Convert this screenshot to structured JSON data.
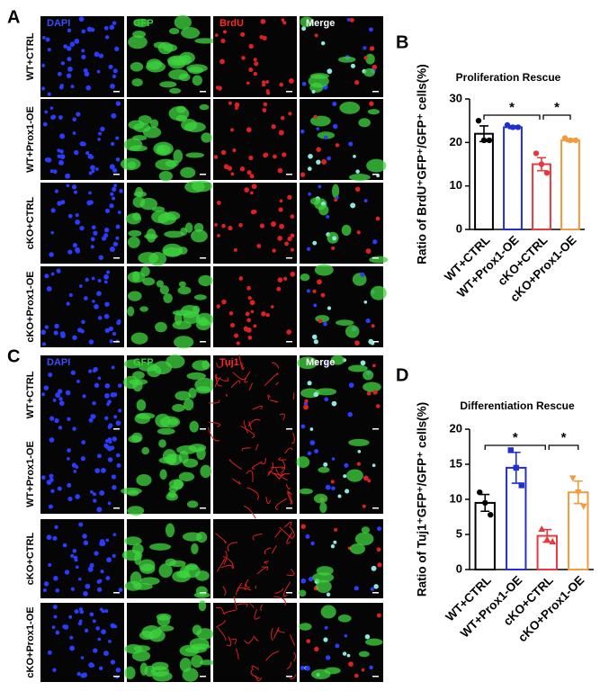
{
  "figure": {
    "panel_A": {
      "label": "A",
      "channels": [
        {
          "name": "DAPI",
          "color": "#3a4cff"
        },
        {
          "name": "GFP",
          "color": "#39d43a"
        },
        {
          "name": "BrdU",
          "color": "#ff2a2a"
        },
        {
          "name": "Merge",
          "color": "#ffffff"
        }
      ],
      "rows": [
        "WT+CTRL",
        "WT+Prox1-OE",
        "cKO+CTRL",
        "cKO+Prox1-OE"
      ]
    },
    "panel_C": {
      "label": "C",
      "channels": [
        {
          "name": "DAPI",
          "color": "#3a4cff"
        },
        {
          "name": "GFP",
          "color": "#39d43a"
        },
        {
          "name": "Tuj1",
          "color": "#ff2a2a"
        },
        {
          "name": "Merge",
          "color": "#ffffff"
        }
      ],
      "rows": [
        "WT+CTRL",
        "WT+Prox1-OE",
        "cKO+CTRL",
        "cKO+Prox1-OE"
      ]
    }
  },
  "chart_data": [
    {
      "type": "bar",
      "panel_label": "B",
      "title": "Proliferation Rescue",
      "y_label": "Ratio of BrdU⁺GFP⁺/GFP⁺ cells(%)",
      "categories": [
        "WT+CTRL",
        "WT+Prox1-OE",
        "cKO+CTRL",
        "cKO+Prox1-OE"
      ],
      "values": [
        22,
        23.5,
        15,
        20.5
      ],
      "errors": [
        1.8,
        0.3,
        1.5,
        0.3
      ],
      "points": [
        [
          25,
          20.5,
          20.5
        ],
        [
          24,
          23.5,
          23.5
        ],
        [
          17.5,
          15,
          13
        ],
        [
          21,
          20.5,
          20.5
        ]
      ],
      "colors": [
        "#000000",
        "#1f2fd0",
        "#e8383d",
        "#f39a3c"
      ],
      "markers": [
        "circle",
        "circle",
        "circle",
        "circle"
      ],
      "ylim": [
        0,
        30
      ],
      "yticks": [
        0,
        10,
        20,
        30
      ],
      "annotations": [
        "*",
        "*"
      ]
    },
    {
      "type": "bar",
      "panel_label": "D",
      "title": "Differentiation Rescue",
      "y_label": "Ratio of Tuj1⁺GFP⁺/GFP⁺ cells(%)",
      "categories": [
        "WT+CTRL",
        "WT+Prox1-OE",
        "cKO+CTRL",
        "cKO+Prox1-OE"
      ],
      "values": [
        9.5,
        14.5,
        4.8,
        11
      ],
      "errors": [
        1.2,
        2.2,
        0.9,
        1.6
      ],
      "points": [
        [
          11,
          9.5,
          7.8
        ],
        [
          17,
          14.5,
          12
        ],
        [
          5.8,
          4.3,
          4
        ],
        [
          13,
          11,
          9
        ]
      ],
      "colors": [
        "#000000",
        "#1f2fd0",
        "#e8383d",
        "#f39a3c"
      ],
      "markers": [
        "circle",
        "square",
        "triangle-up",
        "triangle-down"
      ],
      "ylim": [
        0,
        20
      ],
      "yticks": [
        0,
        5,
        10,
        15,
        20
      ],
      "annotations": [
        "*",
        "*"
      ]
    }
  ]
}
